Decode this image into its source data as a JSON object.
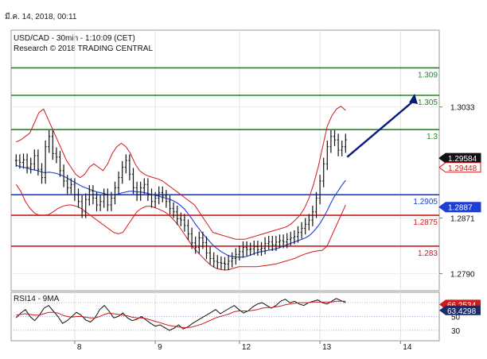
{
  "header": {
    "timestamp": "มี.ค. 14, 2018, 00:11"
  },
  "chart_data": [
    {
      "type": "line",
      "title": "USD/CAD - 30min - 1:10:09 (CET)",
      "subtitle": "Research © 2018 TRADING CENTRAL",
      "x_ticks": [
        "8",
        "9",
        "12",
        "13",
        "14"
      ],
      "y_ticks": [
        "1.3033",
        "1.2871",
        "1.2790"
      ],
      "ylim": [
        1.2765,
        1.3145
      ],
      "series": [
        {
          "role": "price",
          "color": "#111111",
          "values": [
            1.2955,
            1.2952,
            1.2956,
            1.2945,
            1.295,
            1.2962,
            1.2942,
            1.293,
            1.2975,
            1.299,
            1.2965,
            1.296,
            1.294,
            1.2925,
            1.2915,
            1.292,
            1.2905,
            1.2895,
            1.288,
            1.2898,
            1.291,
            1.29,
            1.289,
            1.2895,
            1.2905,
            1.289,
            1.29,
            1.2915,
            1.293,
            1.2945,
            1.2955,
            1.2935,
            1.2915,
            1.2905,
            1.2915,
            1.292,
            1.2905,
            1.2895,
            1.29,
            1.2908,
            1.2903,
            1.2895,
            1.2885,
            1.288,
            1.287,
            1.2868,
            1.286,
            1.2848,
            1.2835,
            1.2828,
            1.2842,
            1.2835,
            1.282,
            1.2812,
            1.2808,
            1.2806,
            1.2805,
            1.2804,
            1.2808,
            1.2812,
            1.2818,
            1.2822,
            1.2828,
            1.2825,
            1.2826,
            1.2829,
            1.2825,
            1.2827,
            1.2834,
            1.2836,
            1.2832,
            1.2836,
            1.2838,
            1.2836,
            1.284,
            1.2842,
            1.2844,
            1.285,
            1.2856,
            1.2862,
            1.2868,
            1.288,
            1.29,
            1.2925,
            1.295,
            1.2975,
            1.299,
            1.2985,
            1.297,
            1.2975,
            1.2985
          ]
        },
        {
          "role": "moving-average",
          "color": "#1c3fd6",
          "values": [
            1.2948,
            1.2946,
            1.2945,
            1.2944,
            1.2942,
            1.2941,
            1.294,
            1.2938,
            1.2937,
            1.2938,
            1.2937,
            1.2936,
            1.2934,
            1.2932,
            1.2929,
            1.2926,
            1.2923,
            1.292,
            1.2917,
            1.2915,
            1.2913,
            1.2911,
            1.2909,
            1.2908,
            1.2907,
            1.2905,
            1.2905,
            1.2905,
            1.2906,
            1.2908,
            1.2909,
            1.291,
            1.291,
            1.2909,
            1.2909,
            1.2908,
            1.2907,
            1.2905,
            1.2904,
            1.2903,
            1.2901,
            1.29,
            1.2898,
            1.2896,
            1.2893,
            1.2889,
            1.2884,
            1.2877,
            1.287,
            1.2862,
            1.2855,
            1.2848,
            1.2842,
            1.2836,
            1.283,
            1.2826,
            1.2822,
            1.2819,
            1.2816,
            1.2815,
            1.2814,
            1.2814,
            1.2814,
            1.2815,
            1.2817,
            1.2819,
            1.2821,
            1.2822,
            1.2823,
            1.2824,
            1.2825,
            1.2826,
            1.2828,
            1.283,
            1.2832,
            1.2834,
            1.2836,
            1.2838,
            1.284,
            1.2842,
            1.2845,
            1.285,
            1.2856,
            1.2863,
            1.2872,
            1.2882,
            1.2893,
            1.2903,
            1.2911,
            1.2919,
            1.2926
          ]
        },
        {
          "role": "bollinger-upper",
          "color": "#d11a1a",
          "values": [
            1.2982,
            1.2985,
            1.299,
            1.2995,
            1.301,
            1.3025,
            1.303,
            1.3015,
            1.3,
            1.2985,
            1.297,
            1.2955,
            1.2945,
            1.2935,
            1.293,
            1.2935,
            1.2945,
            1.295,
            1.2945,
            1.294,
            1.295,
            1.2965,
            1.2975,
            1.298,
            1.2975,
            1.2965,
            1.295,
            1.294,
            1.2935,
            1.2932,
            1.293,
            1.2928,
            1.2925,
            1.292,
            1.2915,
            1.291,
            1.2905,
            1.29,
            1.2895,
            1.289,
            1.288,
            1.287,
            1.286,
            1.285,
            1.2848,
            1.2846,
            1.2844,
            1.2842,
            1.284,
            1.284,
            1.284,
            1.2842,
            1.2844,
            1.2846,
            1.2848,
            1.285,
            1.2852,
            1.2854,
            1.2856,
            1.2858,
            1.2862,
            1.2868,
            1.2875,
            1.2885,
            1.29,
            1.292,
            1.2945,
            1.2975,
            1.3005,
            1.302,
            1.303,
            1.3034,
            1.3028
          ]
        },
        {
          "role": "bollinger-lower",
          "color": "#d11a1a",
          "values": [
            1.292,
            1.291,
            1.2895,
            1.2885,
            1.2878,
            1.2875,
            1.2875,
            1.2876,
            1.288,
            1.2885,
            1.2888,
            1.289,
            1.289,
            1.2888,
            1.2885,
            1.288,
            1.2875,
            1.287,
            1.2865,
            1.286,
            1.2855,
            1.285,
            1.2848,
            1.285,
            1.286,
            1.287,
            1.288,
            1.2885,
            1.2888,
            1.2888,
            1.2886,
            1.2883,
            1.288,
            1.2875,
            1.2868,
            1.286,
            1.285,
            1.284,
            1.283,
            1.2822,
            1.2815,
            1.2808,
            1.2802,
            1.2798,
            1.2796,
            1.2795,
            1.2796,
            1.2798,
            1.28,
            1.28,
            1.28,
            1.28,
            1.28,
            1.2801,
            1.2802,
            1.2803,
            1.2804,
            1.2806,
            1.2808,
            1.281,
            1.2812,
            1.2815,
            1.2818,
            1.282,
            1.2822,
            1.2823,
            1.2824,
            1.283,
            1.2845,
            1.286,
            1.2875,
            1.289
          ]
        }
      ],
      "levels": [
        {
          "value": 1.309,
          "label": "1.309",
          "color": "#1e8a1e"
        },
        {
          "value": 1.305,
          "label": "1.305",
          "color": "#1e8a1e"
        },
        {
          "value": 1.3,
          "label": "1.3",
          "color": "#1e8a1e"
        },
        {
          "value": 1.2905,
          "label": "1.2905",
          "color": "#1c3fd6"
        },
        {
          "value": 1.2875,
          "label": "1.2875",
          "color": "#d11a1a"
        },
        {
          "value": 1.283,
          "label": "1.283",
          "color": "#d11a1a"
        }
      ],
      "projection": {
        "from": 1.296,
        "to": 1.305,
        "color": "#0a1a7a"
      },
      "price_tags": [
        {
          "value": 1.29584,
          "label": "1.29584",
          "bg": "#111111",
          "fg": "#ffffff"
        },
        {
          "value": 1.29448,
          "label": "1.29448",
          "bg": "#ffffff",
          "fg": "#d11a1a",
          "border": "#d11a1a"
        },
        {
          "value": 1.2887,
          "label": "1.2887",
          "bg": "#1c3fd6",
          "fg": "#ffffff"
        }
      ]
    },
    {
      "type": "line",
      "title": "RSI14 - 9MA",
      "y_ticks": [
        "70",
        "50",
        "30"
      ],
      "ylim": [
        15,
        85
      ],
      "series": [
        {
          "role": "rsi",
          "color": "#111111",
          "values": [
            48,
            55,
            60,
            50,
            44,
            52,
            62,
            66,
            58,
            50,
            40,
            44,
            50,
            56,
            52,
            45,
            42,
            48,
            60,
            66,
            58,
            48,
            50,
            55,
            48,
            44,
            46,
            50,
            45,
            40,
            36,
            38,
            34,
            30,
            33,
            38,
            32,
            35,
            40,
            44,
            48,
            52,
            56,
            60,
            54,
            58,
            62,
            66,
            60,
            55,
            58,
            64,
            68,
            70,
            66,
            62,
            66,
            72,
            75,
            70,
            72,
            68,
            66,
            70,
            72,
            74,
            70,
            68,
            72,
            76,
            73,
            70
          ]
        },
        {
          "role": "rsi-ma",
          "color": "#d11a1a",
          "values": [
            52,
            53,
            54,
            53,
            52,
            52,
            54,
            56,
            56,
            55,
            52,
            50,
            49,
            50,
            50,
            49,
            48,
            48,
            50,
            53,
            55,
            54,
            53,
            52,
            51,
            49,
            48,
            48,
            47,
            45,
            43,
            41,
            39,
            37,
            36,
            35,
            34,
            34,
            35,
            37,
            39,
            42,
            45,
            48,
            50,
            52,
            54,
            57,
            58,
            58,
            58,
            59,
            60,
            62,
            63,
            63,
            64,
            65,
            67,
            68,
            69,
            70,
            70,
            70,
            71,
            71,
            71,
            71,
            71,
            72,
            72,
            72
          ]
        }
      ],
      "price_tags": [
        {
          "value": 66.2534,
          "label": "66.2534",
          "bg": "#d11a1a",
          "fg": "#ffffff"
        },
        {
          "value": 63.4298,
          "label": "63.4298",
          "bg": "#1a2a6a",
          "fg": "#ffffff"
        }
      ]
    }
  ]
}
